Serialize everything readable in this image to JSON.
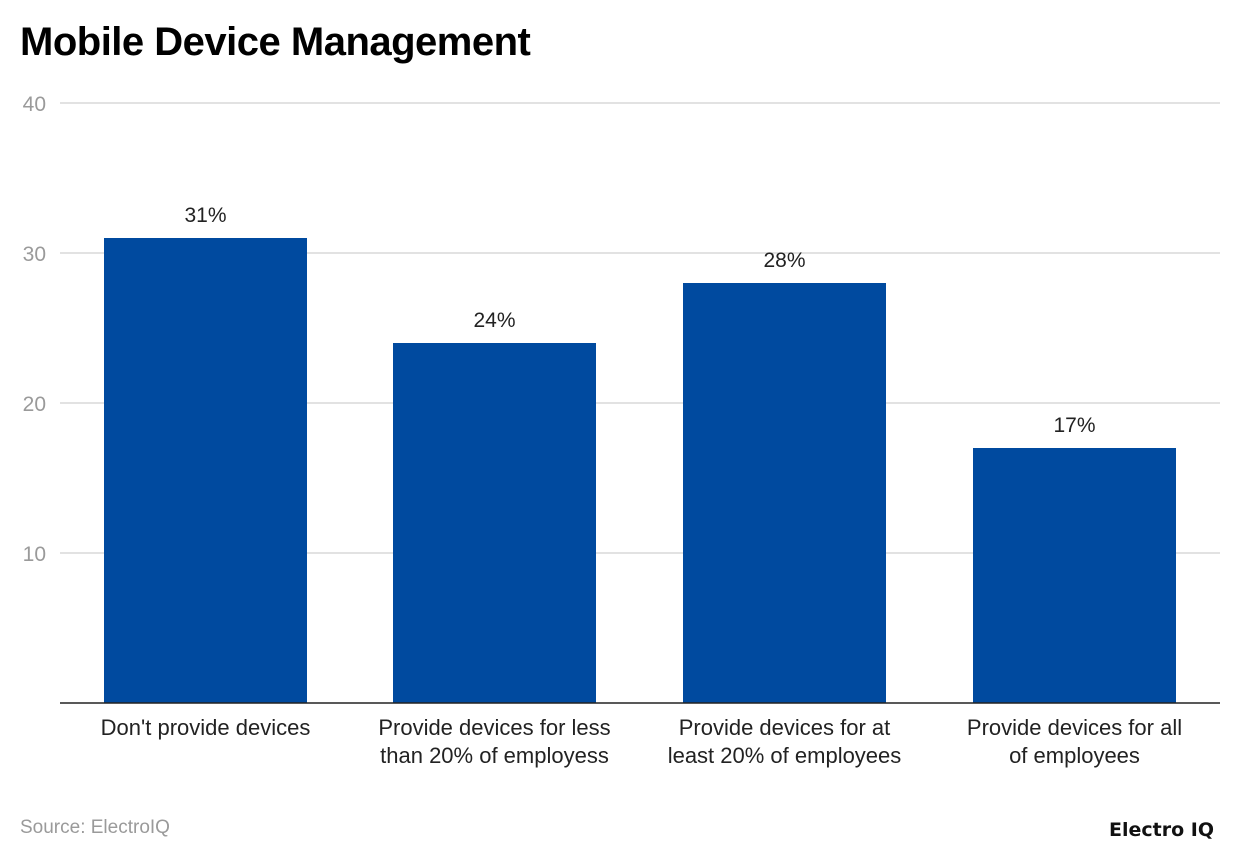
{
  "title": "Mobile Device Management",
  "source": "Source: ElectroIQ",
  "logo": "Electro IQ",
  "chart_data": {
    "type": "bar",
    "title": "Mobile Device Management",
    "categories": [
      [
        "Don't provide devices"
      ],
      [
        "Provide devices for less",
        "than 20% of employess"
      ],
      [
        "Provide devices for at",
        "least 20% of employees"
      ],
      [
        "Provide devices for all",
        "of employees"
      ]
    ],
    "values": [
      31,
      24,
      28,
      17
    ],
    "data_labels": [
      "31%",
      "24%",
      "28%",
      "17%"
    ],
    "y_ticks": [
      "10",
      "20",
      "30",
      "40"
    ],
    "ylim": [
      0,
      40
    ],
    "grid": true,
    "bar_color": "#004A9F",
    "xlabel": "",
    "ylabel": ""
  }
}
